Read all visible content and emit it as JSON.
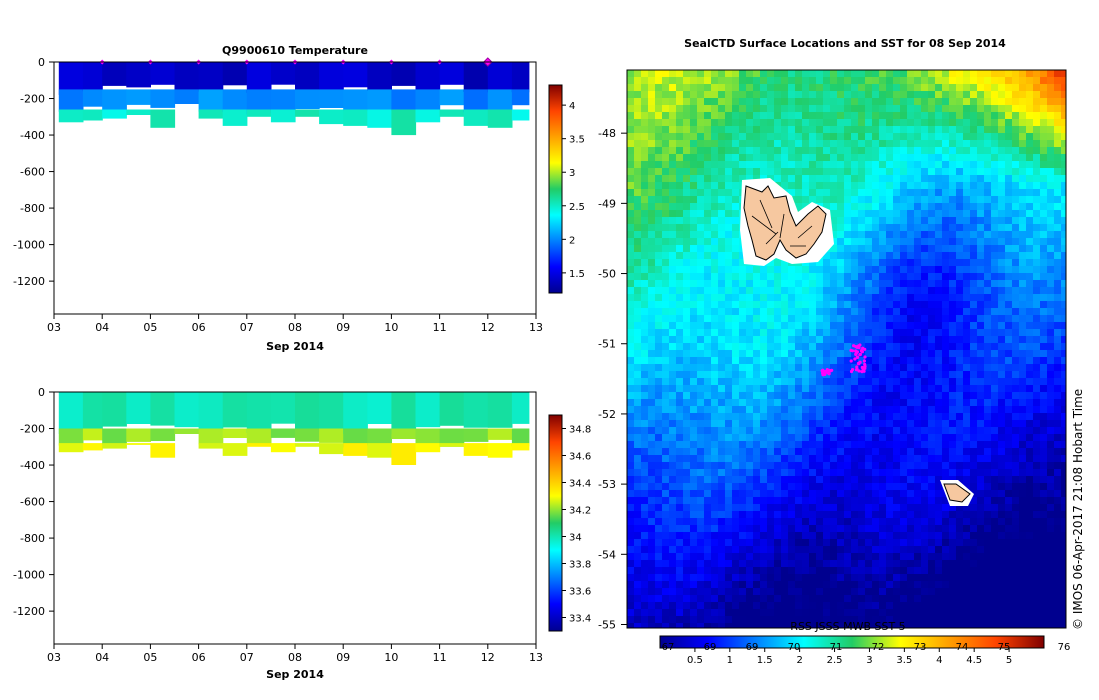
{
  "chart_data": [
    {
      "id": "temperature",
      "type": "heatmap",
      "title": "Q9900610  Temperature",
      "xlabel": "Sep 2014",
      "ylabel": "",
      "x_ticks": [
        "03",
        "04",
        "05",
        "06",
        "07",
        "08",
        "09",
        "10",
        "11",
        "12",
        "13"
      ],
      "x_range": [
        3,
        13
      ],
      "y_ticks": [
        "0",
        "-200",
        "-400",
        "-600",
        "-800",
        "-1000",
        "-1200"
      ],
      "y_range": [
        -1380,
        0
      ],
      "colorbar": {
        "ticks": [
          "1.5",
          "2",
          "2.5",
          "3",
          "3.5",
          "4"
        ],
        "range": [
          1.2,
          4.3
        ]
      },
      "profile_times": [
        3.1,
        3.6,
        4.0,
        4.5,
        5.0,
        5.5,
        6.0,
        6.5,
        7.0,
        7.5,
        8.0,
        8.5,
        9.0,
        9.5,
        10.0,
        10.5,
        11.0,
        11.5,
        12.0,
        12.5
      ],
      "profile_max_depth": [
        -330,
        -320,
        -310,
        -290,
        -360,
        -230,
        -310,
        -350,
        -300,
        -330,
        -300,
        -340,
        -350,
        -360,
        -400,
        -330,
        -300,
        -350,
        -360,
        -320
      ],
      "layers": [
        {
          "top": 0,
          "bottom": -150,
          "value": 1.4
        },
        {
          "top": -150,
          "bottom": -260,
          "value": 2.0
        },
        {
          "top": -260,
          "bottom": -400,
          "value": 2.5
        }
      ],
      "markers": {
        "times": [
          4,
          5,
          6,
          7,
          8,
          9,
          10,
          11,
          12
        ],
        "highlight_time": 12
      }
    },
    {
      "id": "salinity",
      "type": "heatmap",
      "title": "",
      "xlabel": "Sep 2014",
      "ylabel": "",
      "x_ticks": [
        "03",
        "04",
        "05",
        "06",
        "07",
        "08",
        "09",
        "10",
        "11",
        "12",
        "13"
      ],
      "x_range": [
        3,
        13
      ],
      "y_ticks": [
        "0",
        "-200",
        "-400",
        "-600",
        "-800",
        "-1000",
        "-1200"
      ],
      "y_range": [
        -1380,
        0
      ],
      "colorbar": {
        "ticks": [
          "33.4",
          "33.6",
          "33.8",
          "34",
          "34.2",
          "34.4",
          "34.6",
          "34.8"
        ],
        "range": [
          33.3,
          34.9
        ]
      },
      "profile_times": [
        3.1,
        3.6,
        4.0,
        4.5,
        5.0,
        5.5,
        6.0,
        6.5,
        7.0,
        7.5,
        8.0,
        8.5,
        9.0,
        9.5,
        10.0,
        10.5,
        11.0,
        11.5,
        12.0,
        12.5
      ],
      "profile_max_depth": [
        -330,
        -320,
        -310,
        -290,
        -360,
        -230,
        -310,
        -350,
        -300,
        -330,
        -300,
        -340,
        -350,
        -360,
        -400,
        -330,
        -300,
        -350,
        -360,
        -320
      ],
      "layers": [
        {
          "top": 0,
          "bottom": -200,
          "value": 34.0
        },
        {
          "top": -200,
          "bottom": -280,
          "value": 34.2
        },
        {
          "top": -280,
          "bottom": -400,
          "value": 34.3
        }
      ]
    },
    {
      "id": "sst_map",
      "type": "heatmap",
      "title": "SealCTD Surface Locations and SST for 08 Sep 2014",
      "xlabel": "",
      "ylabel": "",
      "y_ticks": [
        "-48",
        "-49",
        "-50",
        "-51",
        "-52",
        "-53",
        "-54",
        "-55"
      ],
      "y_range": [
        -55.05,
        -47.1
      ],
      "colorbar": {
        "ticks": [
          "0.5",
          "1",
          "1.5",
          "2",
          "2.5",
          "3",
          "3.5",
          "4",
          "4.5",
          "5"
        ],
        "end_label": "76",
        "range": [
          0,
          5.5
        ]
      },
      "overlap_labels": [
        "67",
        "69",
        "69",
        "70",
        "71",
        "72",
        "73",
        "74",
        "75"
      ],
      "footer": "RSS JSSS MWB SST 5",
      "land_label": "",
      "seal_track_center": [
        -51.15,
        -51.25
      ]
    }
  ],
  "credit": "© IMOS 06-Apr-2017 21:08 Hobart Time"
}
